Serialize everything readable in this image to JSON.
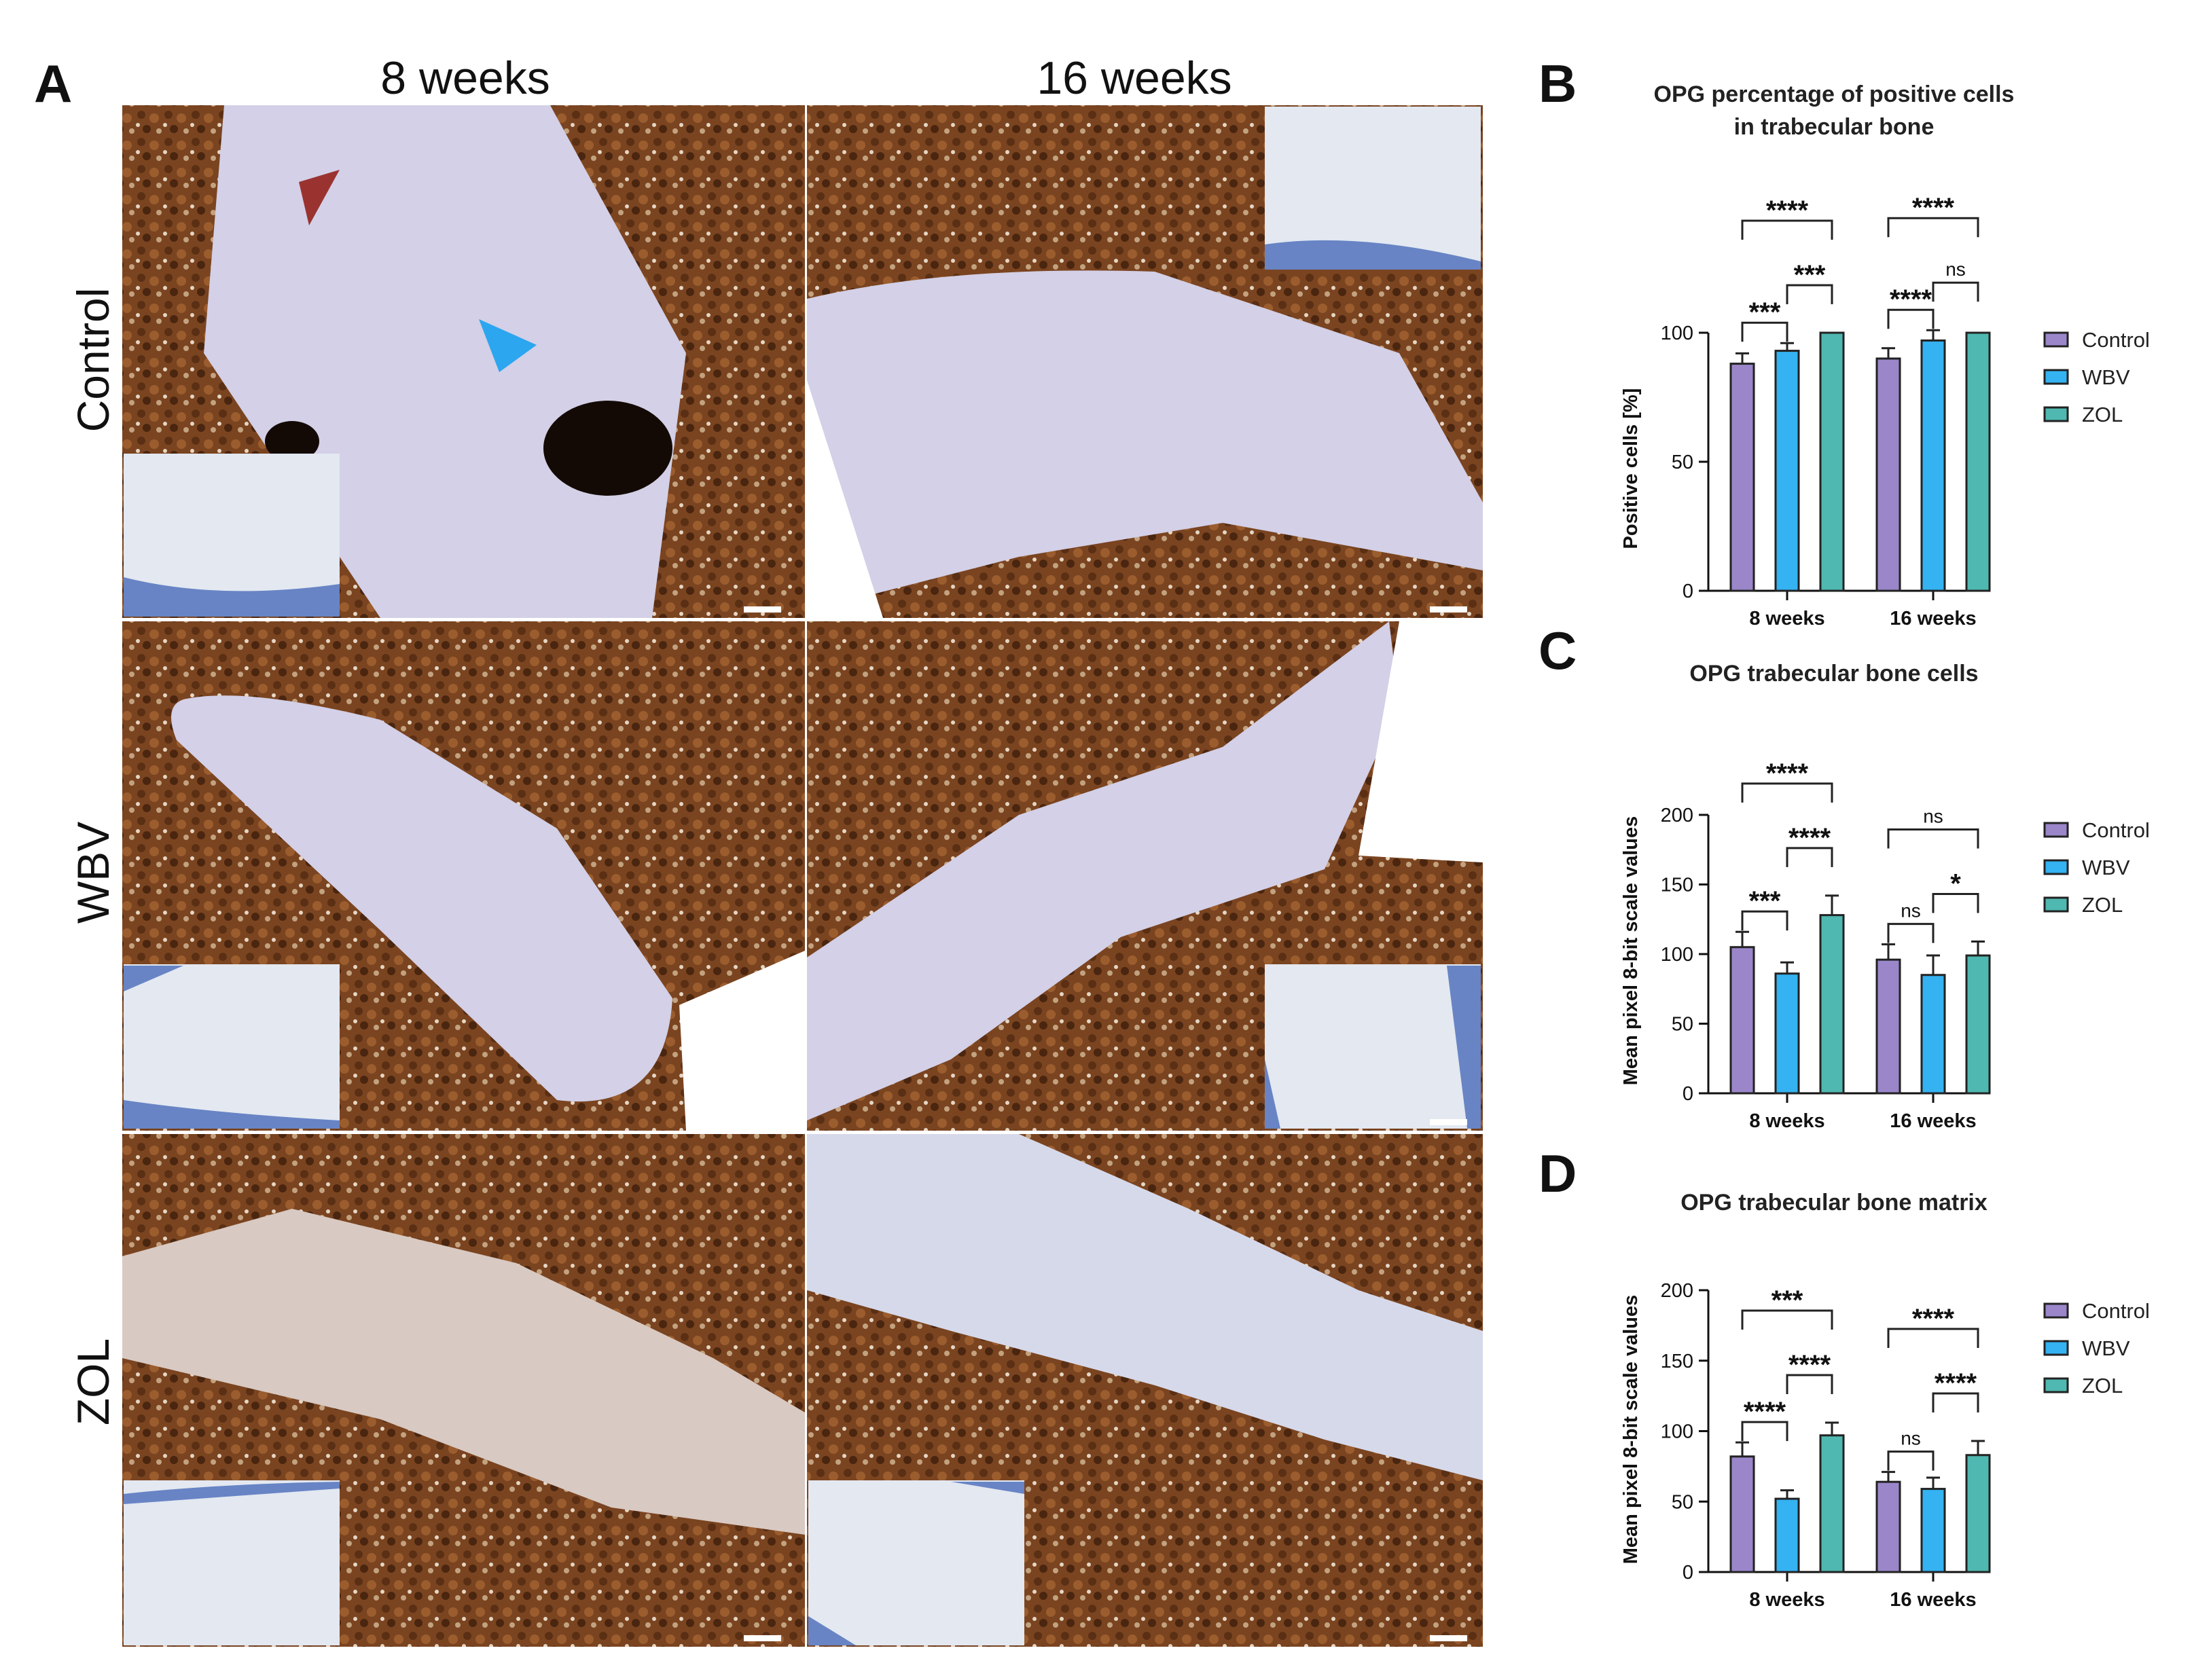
{
  "panel_letters": {
    "a": "A",
    "b": "B",
    "c": "C",
    "d": "D"
  },
  "micrographs": {
    "columns": [
      "8 weeks",
      "16 weeks"
    ],
    "rows": [
      "Control",
      "WBV",
      "ZOL"
    ]
  },
  "colors": {
    "control": "#9a86c9",
    "wbv": "#34b2f2",
    "zol": "#4fb8b0",
    "stain_brown": "#7a4420",
    "bone_lavender": "#d3d0e7",
    "inset_bg": "#e3e8f1",
    "inset_edge": "#3f63b6",
    "arrow_red": "#9a3330",
    "arrow_blue": "#2ca6ee"
  },
  "icons": {
    "arrow_red": "arrowhead-red-icon",
    "arrow_blue": "arrowhead-blue-icon"
  },
  "chart_data": [
    {
      "type": "bar",
      "title": "OPG percentage of positive cells",
      "title_line2": "in trabecular bone",
      "ylabel": "Positive cells [%]",
      "ylim": [
        0,
        100
      ],
      "yticks": [
        "0",
        "50",
        "100"
      ],
      "categories": [
        "8 weeks",
        "16 weeks"
      ],
      "series": [
        {
          "name": "Control",
          "values": [
            88,
            90
          ],
          "errors": [
            4,
            4
          ]
        },
        {
          "name": "WBV",
          "values": [
            93,
            97
          ],
          "errors": [
            3,
            4
          ]
        },
        {
          "name": "ZOL",
          "values": [
            100,
            100
          ],
          "errors": [
            0,
            0
          ]
        }
      ],
      "significance": [
        {
          "group": 0,
          "from": 0,
          "to": 2,
          "label": "****"
        },
        {
          "group": 0,
          "from": 1,
          "to": 2,
          "label": "***"
        },
        {
          "group": 0,
          "from": 0,
          "to": 1,
          "label": "***"
        },
        {
          "group": 1,
          "from": 0,
          "to": 2,
          "label": "****"
        },
        {
          "group": 1,
          "from": 0,
          "to": 1,
          "label": "****"
        },
        {
          "group": 1,
          "from": 1,
          "to": 2,
          "label": "ns"
        }
      ],
      "legend": [
        "Control",
        "WBV",
        "ZOL"
      ]
    },
    {
      "type": "bar",
      "title": "OPG trabecular bone cells",
      "ylabel": "Mean pixel 8-bit scale values",
      "ylim": [
        0,
        200
      ],
      "yticks": [
        "0",
        "50",
        "100",
        "150",
        "200"
      ],
      "categories": [
        "8 weeks",
        "16 weeks"
      ],
      "series": [
        {
          "name": "Control",
          "values": [
            105,
            96
          ],
          "errors": [
            11,
            11
          ]
        },
        {
          "name": "WBV",
          "values": [
            86,
            85
          ],
          "errors": [
            8,
            14
          ]
        },
        {
          "name": "ZOL",
          "values": [
            128,
            99
          ],
          "errors": [
            14,
            10
          ]
        }
      ],
      "significance": [
        {
          "group": 0,
          "from": 0,
          "to": 2,
          "label": "****"
        },
        {
          "group": 0,
          "from": 1,
          "to": 2,
          "label": "****"
        },
        {
          "group": 0,
          "from": 0,
          "to": 1,
          "label": "***"
        },
        {
          "group": 1,
          "from": 0,
          "to": 2,
          "label": "ns"
        },
        {
          "group": 1,
          "from": 0,
          "to": 1,
          "label": "ns"
        },
        {
          "group": 1,
          "from": 1,
          "to": 2,
          "label": "*"
        }
      ],
      "legend": [
        "Control",
        "WBV",
        "ZOL"
      ]
    },
    {
      "type": "bar",
      "title": "OPG trabecular bone matrix",
      "ylabel": "Mean pixel 8-bit scale values",
      "ylim": [
        0,
        200
      ],
      "yticks": [
        "0",
        "50",
        "100",
        "150",
        "200"
      ],
      "categories": [
        "8 weeks",
        "16 weeks"
      ],
      "series": [
        {
          "name": "Control",
          "values": [
            82,
            64
          ],
          "errors": [
            10,
            7
          ]
        },
        {
          "name": "WBV",
          "values": [
            52,
            59
          ],
          "errors": [
            6,
            8
          ]
        },
        {
          "name": "ZOL",
          "values": [
            97,
            83
          ],
          "errors": [
            9,
            10
          ]
        }
      ],
      "significance": [
        {
          "group": 0,
          "from": 0,
          "to": 2,
          "label": "***"
        },
        {
          "group": 0,
          "from": 1,
          "to": 2,
          "label": "****"
        },
        {
          "group": 0,
          "from": 0,
          "to": 1,
          "label": "****"
        },
        {
          "group": 1,
          "from": 0,
          "to": 2,
          "label": "****"
        },
        {
          "group": 1,
          "from": 0,
          "to": 1,
          "label": "ns"
        },
        {
          "group": 1,
          "from": 1,
          "to": 2,
          "label": "****"
        }
      ],
      "legend": [
        "Control",
        "WBV",
        "ZOL"
      ]
    }
  ]
}
